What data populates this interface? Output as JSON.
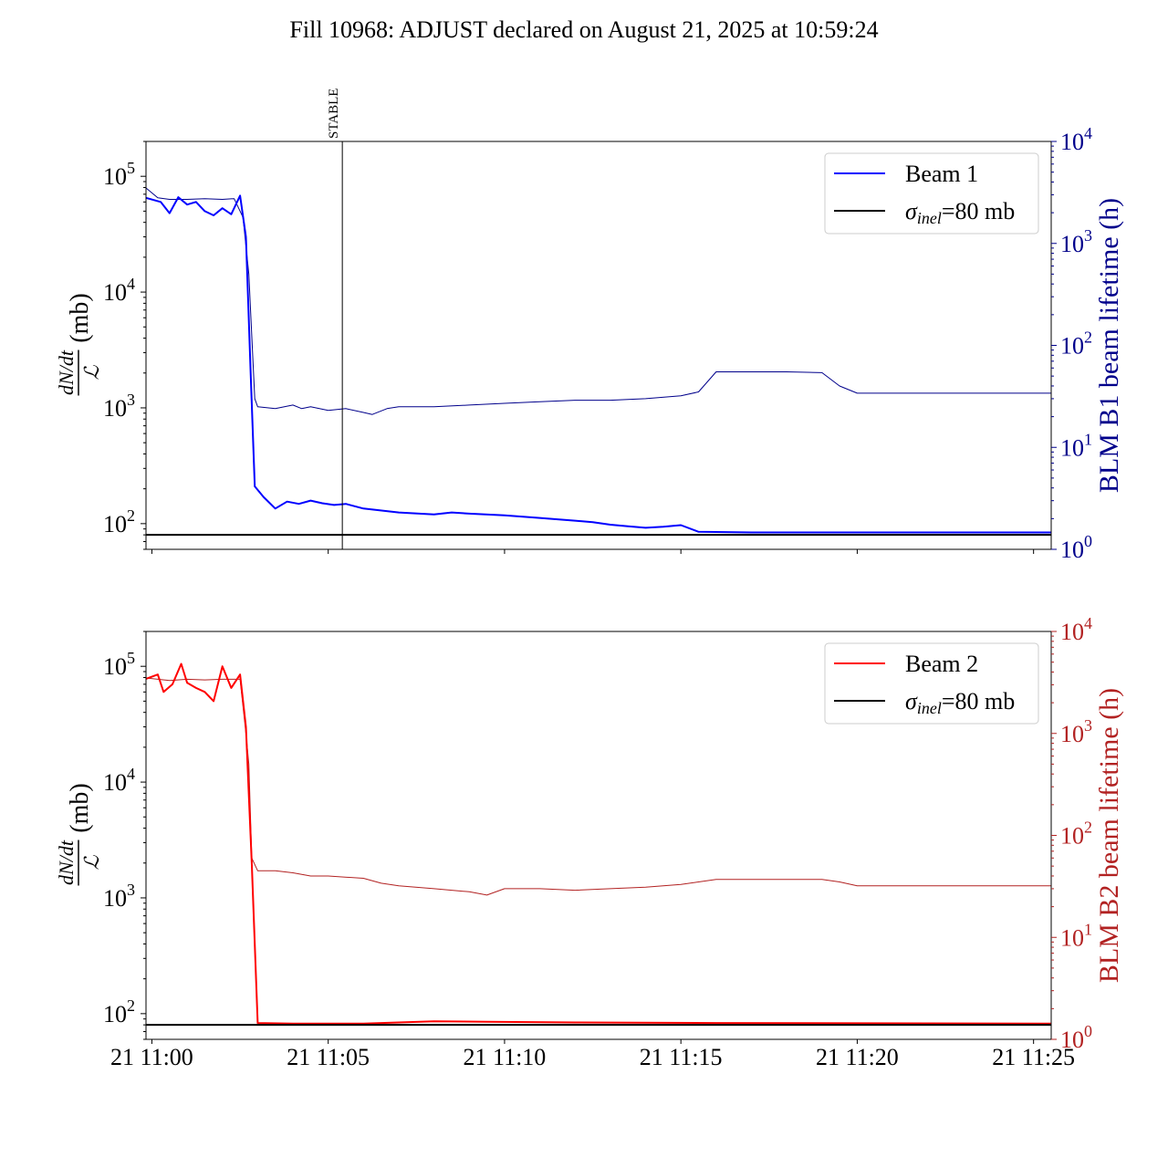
{
  "title": "Fill 10968: ADJUST declared on August 21, 2025 at 10:59:24",
  "colors": {
    "beam1": "#0000ff",
    "beam1_lifetime": "#00008b",
    "beam2": "#ff0000",
    "beam2_lifetime": "#b22222",
    "sigma": "#000000"
  },
  "chart_data": [
    {
      "type": "line",
      "panel": "top",
      "ylabel_left": "(mb)",
      "ylabel_right": "BLM B1 beam lifetime (h)",
      "yscale_left": "log",
      "ylim_left": [
        60,
        200000
      ],
      "yticks_left": [
        "10^2",
        "10^3",
        "10^4",
        "10^5"
      ],
      "yscale_right": "log",
      "ylim_right": [
        1,
        10000
      ],
      "yticks_right": [
        "10^0",
        "10^1",
        "10^2",
        "10^3",
        "10^4"
      ],
      "xlim": [
        "10:59:50",
        "11:25:30"
      ],
      "vline": {
        "x": "11:05:24",
        "label": "STABLE"
      },
      "legend": {
        "placement": "top-right",
        "entries": [
          "Beam 1",
          "σinel=80 mb"
        ]
      },
      "series": [
        {
          "name": "Beam 1",
          "axis": "left",
          "color": "#0000ff",
          "width": 2,
          "x": [
            "10:59:50",
            "11:00:15",
            "11:00:30",
            "11:00:45",
            "11:01:00",
            "11:01:15",
            "11:01:30",
            "11:01:45",
            "11:02:00",
            "11:02:15",
            "11:02:30",
            "11:02:40",
            "11:02:48",
            "11:02:55",
            "11:03:10",
            "11:03:30",
            "11:03:50",
            "11:04:10",
            "11:04:30",
            "11:04:50",
            "11:05:10",
            "11:05:30",
            "11:06:00",
            "11:07:00",
            "11:08:00",
            "11:08:30",
            "11:09:00",
            "11:10:00",
            "11:11:00",
            "11:12:00",
            "11:12:30",
            "11:13:00",
            "11:13:30",
            "11:14:00",
            "11:14:30",
            "11:15:00",
            "11:15:30",
            "11:17:00",
            "11:20:00",
            "11:25:30"
          ],
          "y": [
            65000,
            60000,
            48000,
            66000,
            57000,
            60000,
            50000,
            46000,
            53000,
            47000,
            68000,
            30000,
            2000,
            210,
            170,
            135,
            155,
            148,
            158,
            150,
            145,
            148,
            135,
            125,
            120,
            125,
            122,
            118,
            112,
            106,
            103,
            98,
            95,
            92,
            94,
            97,
            85,
            84,
            84,
            84
          ]
        },
        {
          "name": "BLM B1 beam lifetime",
          "axis": "right",
          "color": "#00008b",
          "width": 1,
          "x": [
            "10:59:50",
            "11:00:10",
            "11:00:30",
            "11:01:00",
            "11:01:30",
            "11:02:00",
            "11:02:20",
            "11:02:35",
            "11:02:45",
            "11:02:55",
            "11:03:00",
            "11:03:30",
            "11:04:00",
            "11:04:15",
            "11:04:30",
            "11:05:00",
            "11:05:30",
            "11:06:00",
            "11:06:15",
            "11:06:40",
            "11:07:00",
            "11:08:00",
            "11:09:00",
            "11:10:00",
            "11:11:00",
            "11:12:00",
            "11:13:00",
            "11:14:00",
            "11:15:00",
            "11:15:30",
            "11:16:00",
            "11:17:00",
            "11:18:00",
            "11:19:00",
            "11:19:30",
            "11:20:00",
            "11:22:00",
            "11:25:30"
          ],
          "y": [
            3500,
            2800,
            2700,
            2700,
            2750,
            2700,
            2750,
            1800,
            500,
            30,
            25,
            24,
            26,
            24,
            25,
            23,
            24,
            22,
            21,
            24,
            25,
            25,
            26,
            27,
            28,
            29,
            29,
            30,
            32,
            35,
            55,
            55,
            55,
            54,
            40,
            34,
            34,
            34
          ]
        },
        {
          "name": "σinel=80 mb",
          "axis": "left",
          "color": "#000000",
          "width": 2,
          "x": [
            "10:59:50",
            "11:25:30"
          ],
          "y": [
            80,
            80
          ]
        }
      ]
    },
    {
      "type": "line",
      "panel": "bottom",
      "xlabel": "",
      "ylabel_left": "(mb)",
      "ylabel_right": "BLM B2 beam lifetime (h)",
      "yscale_left": "log",
      "ylim_left": [
        60,
        200000
      ],
      "yticks_left": [
        "10^2",
        "10^3",
        "10^4",
        "10^5"
      ],
      "yscale_right": "log",
      "ylim_right": [
        1,
        10000
      ],
      "yticks_right": [
        "10^0",
        "10^1",
        "10^2",
        "10^3",
        "10^4"
      ],
      "xlim": [
        "10:59:50",
        "11:25:30"
      ],
      "xticks": [
        "21 11:00",
        "21 11:05",
        "21 11:10",
        "21 11:15",
        "21 11:20",
        "21 11:25"
      ],
      "legend": {
        "placement": "top-right",
        "entries": [
          "Beam 2",
          "σinel=80 mb"
        ]
      },
      "series": [
        {
          "name": "Beam 2",
          "axis": "left",
          "color": "#ff0000",
          "width": 2,
          "x": [
            "10:59:50",
            "11:00:10",
            "11:00:20",
            "11:00:35",
            "11:00:50",
            "11:01:00",
            "11:01:15",
            "11:01:30",
            "11:01:45",
            "11:02:00",
            "11:02:15",
            "11:02:30",
            "11:02:40",
            "11:02:50",
            "11:03:00",
            "11:04:00",
            "11:06:00",
            "11:08:00",
            "11:09:30",
            "11:12:00",
            "11:16:00",
            "11:25:30"
          ],
          "y": [
            78000,
            85000,
            60000,
            70000,
            105000,
            72000,
            65000,
            60000,
            50000,
            100000,
            65000,
            85000,
            30000,
            2000,
            83,
            82,
            82,
            86,
            85,
            84,
            83,
            82
          ]
        },
        {
          "name": "BLM B2 beam lifetime",
          "axis": "right",
          "color": "#b22222",
          "width": 1,
          "x": [
            "10:59:50",
            "11:00:30",
            "11:01:00",
            "11:01:30",
            "11:02:00",
            "11:02:30",
            "11:02:40",
            "11:02:45",
            "11:02:50",
            "11:03:00",
            "11:03:30",
            "11:04:00",
            "11:04:30",
            "11:05:00",
            "11:06:00",
            "11:06:30",
            "11:07:00",
            "11:08:00",
            "11:09:00",
            "11:09:30",
            "11:10:00",
            "11:11:00",
            "11:12:00",
            "11:13:00",
            "11:14:00",
            "11:15:00",
            "11:16:00",
            "11:17:00",
            "11:18:00",
            "11:19:00",
            "11:19:30",
            "11:20:00",
            "11:22:00",
            "11:25:30"
          ],
          "y": [
            3500,
            3300,
            3400,
            3350,
            3400,
            3400,
            1000,
            500,
            60,
            45,
            45,
            43,
            40,
            40,
            38,
            34,
            32,
            30,
            28,
            26,
            30,
            30,
            29,
            30,
            31,
            33,
            37,
            37,
            37,
            37,
            35,
            32,
            32,
            32
          ]
        },
        {
          "name": "σinel=80 mb",
          "axis": "left",
          "color": "#000000",
          "width": 2,
          "x": [
            "10:59:50",
            "11:25:30"
          ],
          "y": [
            80,
            80
          ]
        }
      ]
    }
  ]
}
